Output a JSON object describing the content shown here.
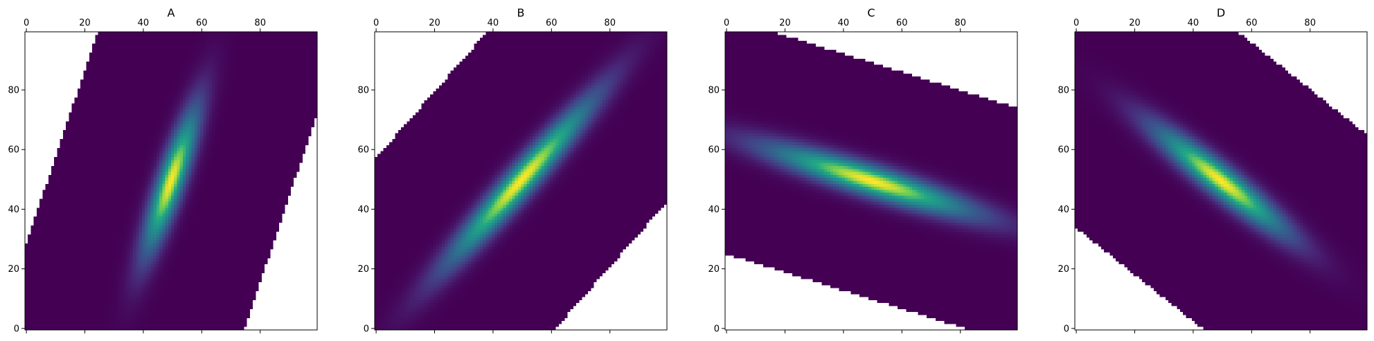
{
  "chart_data": [
    {
      "type": "heatmap",
      "title": "A",
      "xlabel": "",
      "ylabel": "",
      "xlim": [
        0,
        100
      ],
      "ylim": [
        0,
        100
      ],
      "x_ticks": [
        0,
        20,
        40,
        60,
        80
      ],
      "y_ticks": [
        0,
        20,
        40,
        60,
        80
      ],
      "x_tick_labels": [
        "0",
        "20",
        "40",
        "60",
        "80"
      ],
      "y_tick_labels": [
        "0",
        "20",
        "40",
        "60",
        "80"
      ],
      "x_axis_position": "top",
      "colormap": "viridis",
      "grid": false,
      "gaussian": {
        "center": [
          50,
          50
        ],
        "sigma_major": 18,
        "sigma_minor": 3.2,
        "angle_deg": 71
      },
      "masked_region": {
        "type": "band",
        "through": [
          50,
          50
        ],
        "direction_deg": 71,
        "half_width": 40
      }
    },
    {
      "type": "heatmap",
      "title": "B",
      "xlabel": "",
      "ylabel": "",
      "xlim": [
        0,
        100
      ],
      "ylim": [
        0,
        100
      ],
      "x_ticks": [
        0,
        20,
        40,
        60,
        80
      ],
      "y_ticks": [
        0,
        20,
        40,
        60,
        80
      ],
      "x_tick_labels": [
        "0",
        "20",
        "40",
        "60",
        "80"
      ],
      "y_tick_labels": [
        "0",
        "20",
        "40",
        "60",
        "80"
      ],
      "x_axis_position": "top",
      "colormap": "viridis",
      "grid": false,
      "gaussian": {
        "center": [
          50,
          50
        ],
        "sigma_major": 26,
        "sigma_minor": 3.5,
        "angle_deg": 48
      },
      "masked_region": {
        "type": "band",
        "through": [
          50,
          50
        ],
        "direction_deg": 48,
        "half_width": 42
      }
    },
    {
      "type": "heatmap",
      "title": "C",
      "xlabel": "",
      "ylabel": "",
      "xlim": [
        0,
        100
      ],
      "ylim": [
        0,
        100
      ],
      "x_ticks": [
        0,
        20,
        40,
        60,
        80
      ],
      "y_ticks": [
        0,
        20,
        40,
        60,
        80
      ],
      "x_tick_labels": [
        "0",
        "20",
        "40",
        "60",
        "80"
      ],
      "y_tick_labels": [
        "0",
        "20",
        "40",
        "60",
        "80"
      ],
      "x_axis_position": "top",
      "colormap": "viridis",
      "grid": false,
      "gaussian": {
        "center": [
          50,
          50
        ],
        "sigma_major": 26,
        "sigma_minor": 3.6,
        "angle_deg": -17
      },
      "masked_region": {
        "type": "band",
        "through": [
          50,
          50
        ],
        "direction_deg": -17,
        "half_width": 38
      }
    },
    {
      "type": "heatmap",
      "title": "D",
      "xlabel": "",
      "ylabel": "",
      "xlim": [
        0,
        100
      ],
      "ylim": [
        0,
        100
      ],
      "x_ticks": [
        0,
        20,
        40,
        60,
        80
      ],
      "y_ticks": [
        0,
        20,
        40,
        60,
        80
      ],
      "x_tick_labels": [
        "0",
        "20",
        "40",
        "60",
        "80"
      ],
      "y_tick_labels": [
        "0",
        "20",
        "40",
        "60",
        "80"
      ],
      "x_axis_position": "top",
      "colormap": "viridis",
      "grid": false,
      "gaussian": {
        "center": [
          50,
          50
        ],
        "sigma_major": 20,
        "sigma_minor": 3.6,
        "angle_deg": -38
      },
      "masked_region": {
        "type": "band",
        "through": [
          50,
          50
        ],
        "direction_deg": -38,
        "half_width": 43
      }
    }
  ]
}
